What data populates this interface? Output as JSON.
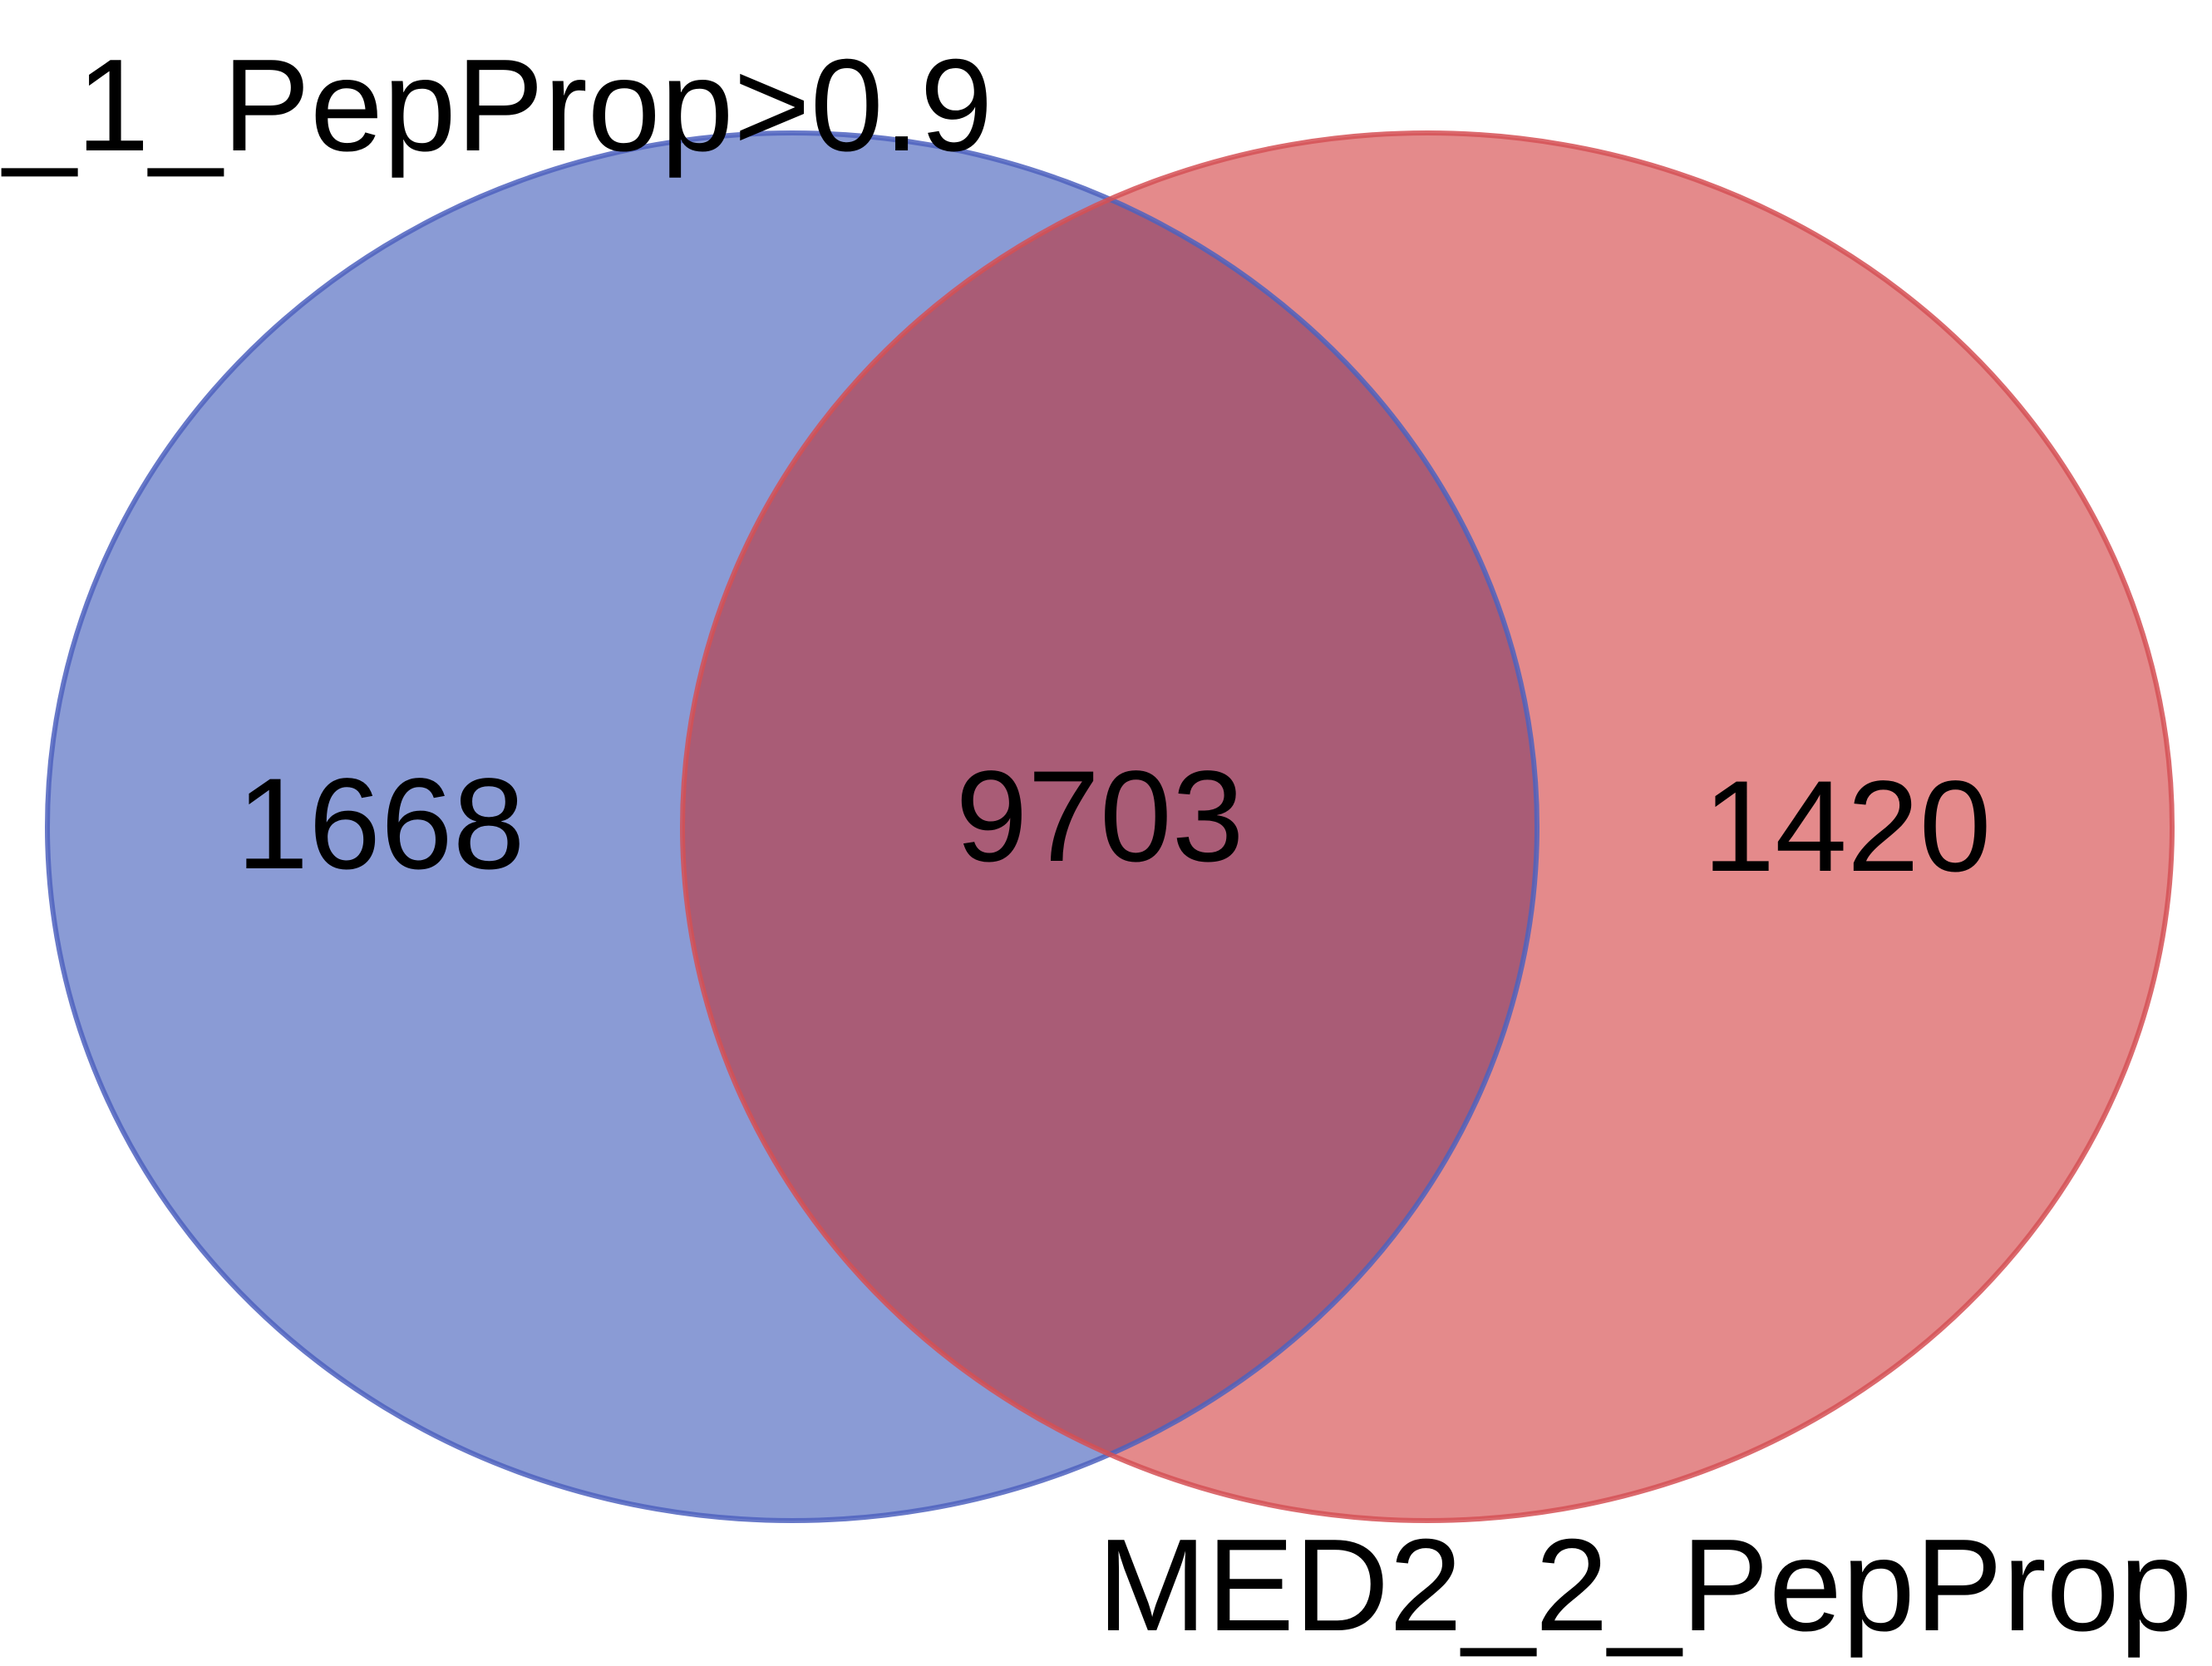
{
  "diagram": {
    "type": "venn",
    "sets": [
      {
        "id": "left",
        "label": "_1_PepProp>0.9",
        "only_count": "1668",
        "fill_color": "#8A9BD5",
        "stroke_color": "#4E62BE"
      },
      {
        "id": "right",
        "label": "MED2_2_PepProp",
        "only_count": "1420",
        "fill_color": "#E48A8B",
        "stroke_color": "#D55055"
      }
    ],
    "intersection": {
      "count": "9703",
      "fill_color": "#A95C76"
    }
  }
}
